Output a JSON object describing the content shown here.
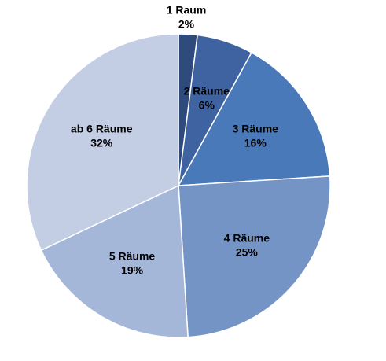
{
  "chart_data": {
    "type": "pie",
    "categories": [
      "1 Raum",
      "2 Räume",
      "3 Räume",
      "4 Räume",
      "5 Räume",
      "ab 6 Räume"
    ],
    "values": [
      2,
      6,
      16,
      25,
      19,
      32
    ],
    "value_labels": [
      "2%",
      "6%",
      "16%",
      "25%",
      "19%",
      "32%"
    ],
    "colors": [
      "#2f4b7c",
      "#3e63a0",
      "#4a79b9",
      "#7494c6",
      "#a5b7d9",
      "#c3cee4"
    ]
  }
}
